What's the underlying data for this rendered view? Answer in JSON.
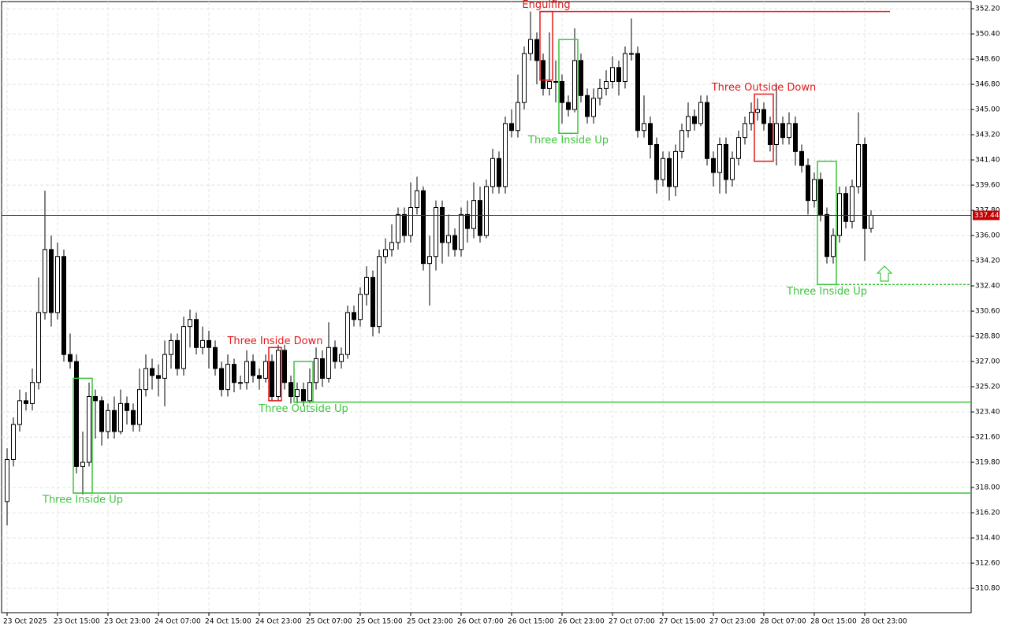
{
  "chart_data": {
    "type": "candlestick",
    "ylim": [
      309.06,
      352.71
    ],
    "yticks": [
      {
        "value": 352.2,
        "label": "352.20"
      },
      {
        "value": 350.4,
        "label": "350.40"
      },
      {
        "value": 348.6,
        "label": "348.60"
      },
      {
        "value": 346.8,
        "label": "346.80"
      },
      {
        "value": 345.0,
        "label": "345.00"
      },
      {
        "value": 343.2,
        "label": "343.20"
      },
      {
        "value": 341.4,
        "label": "341.40"
      },
      {
        "value": 339.6,
        "label": "339.60"
      },
      {
        "value": 337.8,
        "label": "337.80"
      },
      {
        "value": 336.0,
        "label": "336.00"
      },
      {
        "value": 334.2,
        "label": "334.20"
      },
      {
        "value": 332.4,
        "label": "332.40"
      },
      {
        "value": 330.6,
        "label": "330.60"
      },
      {
        "value": 328.8,
        "label": "328.80"
      },
      {
        "value": 327.0,
        "label": "327.00"
      },
      {
        "value": 325.2,
        "label": "325.20"
      },
      {
        "value": 323.4,
        "label": "323.40"
      },
      {
        "value": 321.6,
        "label": "321.60"
      },
      {
        "value": 319.8,
        "label": "319.80"
      },
      {
        "value": 318.0,
        "label": "318.00"
      },
      {
        "value": 316.2,
        "label": "316.20"
      },
      {
        "value": 314.4,
        "label": "314.40"
      },
      {
        "value": 312.6,
        "label": "312.60"
      },
      {
        "value": 310.8,
        "label": "310.80"
      }
    ],
    "grid": true,
    "up_color": "#ffffff",
    "down_color": "#000000",
    "last_price": 337.44,
    "last_price_color": "#c00000",
    "categories": [
      "23 Oct 2025",
      null,
      null,
      null,
      null,
      null,
      null,
      null,
      "23 Oct 15:00",
      null,
      null,
      null,
      null,
      null,
      null,
      null,
      "23 Oct 23:00",
      null,
      null,
      null,
      null,
      null,
      null,
      null,
      "24 Oct 07:00",
      null,
      null,
      null,
      null,
      null,
      null,
      null,
      "24 Oct 15:00",
      null,
      null,
      null,
      null,
      null,
      null,
      null,
      "24 Oct 23:00",
      null,
      null,
      null,
      null,
      null,
      null,
      null,
      "25 Oct 07:00",
      null,
      null,
      null,
      null,
      null,
      null,
      null,
      "25 Oct 15:00",
      null,
      null,
      null,
      null,
      null,
      null,
      null,
      "25 Oct 23:00",
      null,
      null,
      null,
      null,
      null,
      null,
      null,
      "26 Oct 07:00",
      null,
      null,
      null,
      null,
      null,
      null,
      null,
      "26 Oct 15:00",
      null,
      null,
      null,
      null,
      null,
      null,
      null,
      "26 Oct 23:00",
      null,
      null,
      null,
      null,
      null,
      null,
      null,
      "27 Oct 07:00",
      null,
      null,
      null,
      null,
      null,
      null,
      null,
      "27 Oct 15:00",
      null,
      null,
      null,
      null,
      null,
      null,
      null,
      "27 Oct 23:00",
      null,
      null,
      null,
      null,
      null,
      null,
      null,
      "28 Oct 07:00",
      null,
      null,
      null,
      null,
      null,
      null,
      null,
      "28 Oct 15:00",
      null,
      null,
      null,
      null,
      null,
      null,
      null,
      "28 Oct 23:00",
      null
    ],
    "open": [
      317,
      320,
      322.5,
      324.2,
      324,
      325.5,
      330.5,
      335,
      330.5,
      334.5,
      327.5,
      327,
      319.5,
      319.8,
      324.5,
      324.2,
      322,
      323.5,
      322,
      324,
      323.5,
      322.5,
      325,
      326.5,
      326,
      325.8,
      327.5,
      328.5,
      326.5,
      329.5,
      330,
      328,
      328.5,
      328,
      326.5,
      325,
      326.8,
      325.5,
      325.5,
      327,
      326,
      325.8,
      327,
      324.5,
      327.8,
      325.5,
      324.5,
      325,
      324.2,
      325.5,
      327.2,
      325.8,
      328,
      327,
      327.5,
      330.5,
      330,
      331.8,
      333,
      329.5,
      334.5,
      335,
      335.5,
      337.5,
      336,
      338,
      339.2,
      334,
      334.5,
      338,
      335.5,
      336,
      335,
      337.5,
      336.5,
      338.5,
      336,
      339.5,
      341.5,
      339.5,
      344,
      343.5,
      345.5,
      349,
      350,
      348.5,
      346.5,
      347,
      347,
      345.5,
      345,
      348.5,
      346,
      344.5,
      345.8,
      346.5,
      347,
      348,
      347,
      349,
      349,
      343.5,
      344,
      342.5,
      340,
      341.5,
      339.5,
      342,
      343.5,
      344.5,
      344,
      345.5,
      341.5,
      340.5,
      342.5,
      340,
      341.5,
      343,
      344,
      344.8,
      345,
      344,
      342.5,
      344,
      343,
      344,
      342,
      341,
      338.5,
      340,
      337.5,
      334.5,
      336,
      339,
      337,
      339.5,
      342.5,
      336.5
    ],
    "high": [
      320.8,
      323,
      325,
      324.8,
      326.5,
      333,
      339.2,
      336,
      335.5,
      335,
      329,
      327.5,
      322,
      325.5,
      325,
      324.5,
      324,
      324.5,
      325,
      324.5,
      324,
      326.5,
      327.5,
      327.2,
      326.8,
      328.5,
      329,
      329,
      330.2,
      330.7,
      330.5,
      329.5,
      329.2,
      328.5,
      327,
      327.5,
      327.2,
      326,
      327.8,
      327.5,
      326.5,
      327.5,
      327.5,
      328.2,
      328.2,
      326,
      325.5,
      325.5,
      326.5,
      328,
      327.8,
      329.8,
      328.5,
      328,
      331,
      331,
      332.3,
      333.8,
      333.5,
      335,
      335.8,
      336.8,
      338,
      338,
      339.8,
      340.2,
      339.5,
      336,
      338.5,
      338.5,
      337.5,
      336.5,
      338,
      338.5,
      339.8,
      339.5,
      340,
      342.2,
      342,
      344.5,
      345,
      347.5,
      349.5,
      352,
      350.5,
      349,
      350.5,
      348.5,
      347.5,
      346,
      350.8,
      349,
      346.5,
      346.5,
      347.2,
      347.8,
      348.8,
      348.5,
      349.5,
      351.5,
      349.5,
      346,
      344.5,
      343,
      342,
      342,
      342.5,
      344,
      345.5,
      345,
      346,
      346,
      342,
      343,
      343,
      342,
      343.5,
      344.5,
      345.5,
      345.8,
      345.5,
      344.5,
      346.8,
      344.5,
      344.8,
      344.5,
      342.5,
      341.5,
      340.5,
      340.5,
      338,
      336.5,
      339.5,
      339.5,
      340,
      344.8,
      343,
      337.8
    ],
    "low": [
      315.3,
      319.5,
      322,
      323.5,
      323.5,
      325,
      330,
      329.5,
      330,
      327,
      326.5,
      319,
      317.5,
      319.5,
      321.5,
      321,
      321.5,
      321.5,
      321.8,
      322.5,
      322,
      322,
      324.5,
      325,
      324.5,
      323.8,
      326.5,
      326,
      326,
      328,
      327.5,
      327.5,
      326.5,
      326,
      324.5,
      324.5,
      324.8,
      325,
      325,
      325.5,
      325,
      325.5,
      324.2,
      324.2,
      325,
      324,
      324,
      323.8,
      324,
      325,
      325.2,
      325.5,
      326.5,
      326.5,
      327.2,
      329.5,
      329.5,
      331,
      328.8,
      329,
      334,
      334.5,
      335,
      335.5,
      335.5,
      337.5,
      333.5,
      331,
      333.5,
      334,
      334.5,
      334.5,
      334.5,
      335.5,
      335.8,
      335.5,
      335.8,
      339,
      339,
      339,
      343,
      343,
      345,
      348.5,
      346.8,
      346,
      346,
      345.5,
      344,
      344.5,
      344.8,
      345.5,
      344,
      344,
      345.3,
      346,
      346.5,
      346,
      346.5,
      348.5,
      343,
      343,
      341.5,
      339,
      339.5,
      338.5,
      338.8,
      341.5,
      343,
      343.5,
      343.8,
      341,
      339.5,
      339,
      339,
      339.5,
      341,
      342.5,
      343.5,
      344.2,
      343.5,
      342,
      341,
      342.5,
      342.5,
      341,
      340.5,
      337.5,
      338,
      337,
      334,
      334,
      335.5,
      336.5,
      336.5,
      339,
      334.2,
      336.2
    ],
    "close": [
      320,
      322.5,
      324.2,
      324,
      325.5,
      330.5,
      335,
      330.5,
      334.5,
      327.5,
      327,
      319.5,
      319.8,
      324.5,
      324.2,
      322,
      323.5,
      322,
      324,
      323.5,
      322.5,
      325,
      326.5,
      326,
      325.8,
      327.5,
      328.5,
      326.5,
      329.5,
      330,
      328,
      328.5,
      328,
      326.5,
      325,
      326.8,
      325.5,
      325.5,
      327,
      326,
      325.8,
      327,
      324.5,
      327.8,
      325.5,
      324.5,
      325,
      324.2,
      325.5,
      327.2,
      325.8,
      328,
      327,
      327.5,
      330.5,
      330,
      331.8,
      333,
      329.5,
      334.5,
      335,
      335.5,
      337.5,
      336,
      338,
      339.2,
      334,
      334.5,
      338,
      335.5,
      336,
      335,
      337.5,
      336.5,
      338.5,
      336,
      339.5,
      341.5,
      339.5,
      344,
      343.5,
      345.5,
      349,
      350,
      348.5,
      346.5,
      347,
      347,
      345.5,
      345,
      348.5,
      346,
      344.5,
      345.8,
      346.5,
      347,
      348,
      347,
      349,
      349,
      343.5,
      344,
      342.5,
      340,
      341.5,
      339.5,
      342,
      343.5,
      344.5,
      344,
      345.5,
      341.5,
      340.5,
      342.5,
      340,
      341.5,
      343,
      344,
      344.8,
      345,
      344,
      342.5,
      344,
      343,
      344,
      342,
      341,
      338.5,
      340,
      337.5,
      334.5,
      336,
      339,
      337,
      339.5,
      342.5,
      336.5,
      337.44
    ],
    "patterns": [
      {
        "label": "Three Inside Up",
        "color": "#3cc43c",
        "start": 11,
        "end": 13,
        "high": 325.8,
        "low": 317.6,
        "label_position": "below",
        "level": 317.6,
        "level_style": "solid"
      },
      {
        "label": "Three Inside Down",
        "color": "#e41a1a",
        "start": 42,
        "end": 43,
        "high": 328.0,
        "low": 324.2,
        "label_position": "above"
      },
      {
        "label": "Three Outside Up",
        "color": "#3cc43c",
        "start": 46,
        "end": 48,
        "high": 327.0,
        "low": 324.1,
        "label_position": "below",
        "level": 324.1,
        "level_style": "solid"
      },
      {
        "label": "Engulfing",
        "color": "#e41a1a",
        "start": 85,
        "end": 86,
        "high": 352.0,
        "low": 347.1,
        "label_position": "above",
        "level": 352.0,
        "level_style": "solid",
        "level_end": 140
      },
      {
        "label": "Three Inside Up",
        "color": "#3cc43c",
        "start": 88,
        "end": 90,
        "high": 350.0,
        "low": 343.3,
        "label_position": "below"
      },
      {
        "label": "Three Outside Down",
        "color": "#e41a1a",
        "start": 119,
        "end": 121,
        "high": 346.1,
        "low": 341.3,
        "label_position": "above"
      },
      {
        "label": "Three Inside Up",
        "color": "#3cc43c",
        "start": 129,
        "end": 131,
        "high": 341.3,
        "low": 332.5,
        "label_position": "below",
        "level": 332.5,
        "level_style": "dashed"
      }
    ]
  }
}
